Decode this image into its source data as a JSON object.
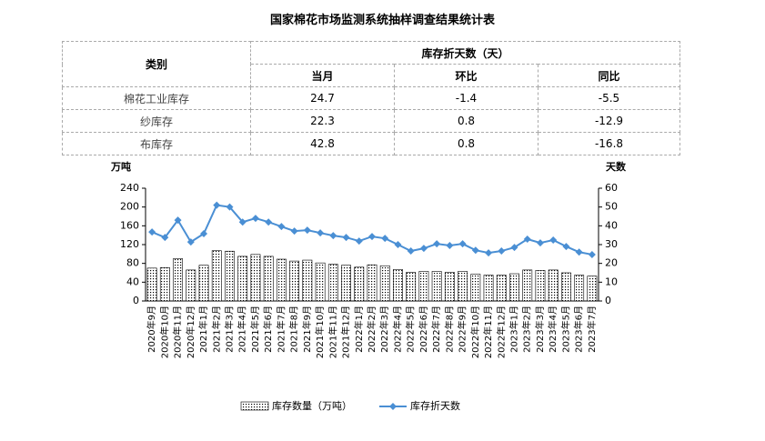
{
  "title": "国家棉花市场监测系统抽样调查结果统计表",
  "table": {
    "header": [
      "类别",
      "库存折天数（天）",
      "当月",
      "环比",
      "同比"
    ],
    "rows": [
      [
        "棉花工业库存",
        "24.7",
        "-1.4",
        "-5.5"
      ],
      [
        "纱库存",
        "22.3",
        "0.8",
        "-12.9"
      ],
      [
        "布库存",
        "42.8",
        "0.8",
        "-16.8"
      ]
    ]
  },
  "chart_data": {
    "type": "combo",
    "y_label": "万吨",
    "y2_label": "天数",
    "categories": [
      "2020年9月",
      "2020年10月",
      "2020年11月",
      "2020年12月",
      "2021年1月",
      "2021年2月",
      "2021年3月",
      "2021年4月",
      "2021年5月",
      "2021年6月",
      "2021年7月",
      "2021年8月",
      "2021年9月",
      "2021年10月",
      "2021年11月",
      "2021年12月",
      "2022年1月",
      "2022年2月",
      "2022年3月",
      "2022年4月",
      "2022年5月",
      "2022年6月",
      "2022年7月",
      "2022年8月",
      "2022年9月",
      "2022年10月",
      "2022年11月",
      "2022年12月",
      "2023年1月",
      "2023年2月",
      "2023年3月",
      "2023年4月",
      "2023年5月",
      "2023年6月",
      "2023年7月"
    ],
    "series": [
      {
        "name": "库存数量（万吨）",
        "type": "bar",
        "color": "#000000",
        "values": [
          70,
          71,
          90,
          66,
          76,
          107,
          106,
          95,
          99,
          95,
          89,
          85,
          87,
          81,
          78,
          76,
          72,
          77,
          75,
          67,
          61,
          63,
          63,
          61,
          63,
          57,
          55,
          55,
          58,
          66,
          65,
          66,
          60,
          55,
          53
        ]
      },
      {
        "name": "库存折天数",
        "type": "line",
        "axis": "y2",
        "color": "#4a8fd4",
        "values": [
          36.7,
          33.8,
          43,
          31.4,
          35.8,
          51,
          50,
          42,
          44,
          42,
          39.6,
          37.2,
          37.7,
          36.2,
          34.8,
          33.8,
          31.9,
          34.3,
          33.3,
          30,
          26.6,
          28,
          30.4,
          29.5,
          30.4,
          27,
          25.6,
          26.6,
          28.5,
          32.9,
          30.9,
          32.4,
          29,
          26,
          24.7
        ]
      }
    ],
    "ylim": [
      0,
      240
    ],
    "yticks": [
      0,
      40,
      80,
      120,
      160,
      200,
      240
    ],
    "y2lim": [
      0,
      60
    ],
    "y2ticks": [
      0,
      10,
      20,
      30,
      40,
      50,
      60
    ]
  }
}
